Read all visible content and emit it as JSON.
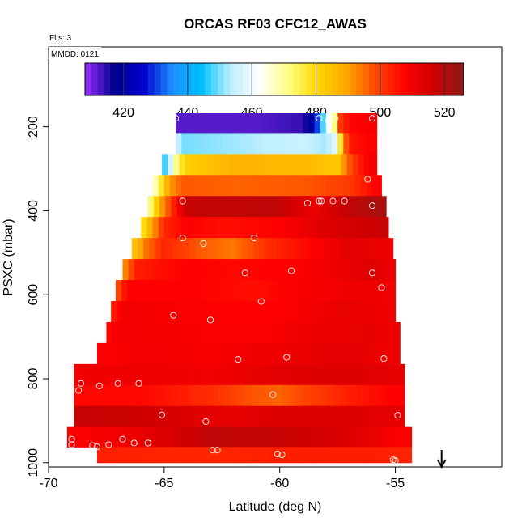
{
  "chart_data": {
    "type": "heatmap",
    "title": "ORCAS RF03 CFC12_AWAS",
    "flights_label": "Flts: 3",
    "date_label": "MMDD: 0121",
    "xlabel": "Latitude (deg N)",
    "ylabel": "PSXC (mbar)",
    "xlim": [
      -70,
      -50.4
    ],
    "ylim": [
      1010,
      10
    ],
    "x_ticks": [
      "-70",
      "-65",
      "-60",
      "-55"
    ],
    "y_ticks": [
      "200",
      "400",
      "600",
      "800",
      "1000"
    ],
    "colorbar": {
      "range": [
        408,
        526
      ],
      "ticks": [
        "420",
        "440",
        "460",
        "480",
        "500",
        "520"
      ],
      "colors": [
        "#9b30ff",
        "#00008b",
        "#0000cd",
        "#1e90ff",
        "#00bfff",
        "#bfefff",
        "#ffffff",
        "#ffff80",
        "#ffd700",
        "#ffa500",
        "#ff4500",
        "#ff0000",
        "#cd0000",
        "#8b1a1a"
      ]
    },
    "arrow_latitude": -53,
    "layers": [
      {
        "p": 190,
        "min_lat": -64.5,
        "max_lat": -55.8,
        "knots": [
          [
            -64.5,
            412
          ],
          [
            -61,
            412
          ],
          [
            -59,
            414
          ],
          [
            -58.5,
            422
          ],
          [
            -58.2,
            442
          ],
          [
            -58.0,
            458
          ],
          [
            -57.6,
            472
          ],
          [
            -57.4,
            500
          ],
          [
            -57.0,
            507
          ],
          [
            -56.0,
            509
          ]
        ]
      },
      {
        "p": 240,
        "min_lat": -64.5,
        "max_lat": -55.8,
        "knots": [
          [
            -64.5,
            456
          ],
          [
            -64.2,
            450
          ],
          [
            -63,
            451
          ],
          [
            -59,
            455
          ],
          [
            -58,
            452
          ],
          [
            -57.5,
            460
          ],
          [
            -57.3,
            488
          ],
          [
            -57.0,
            505
          ],
          [
            -56.0,
            508
          ]
        ]
      },
      {
        "p": 290,
        "min_lat": -65.1,
        "max_lat": -55.8,
        "knots": [
          [
            -65.1,
            444
          ],
          [
            -64.8,
            452
          ],
          [
            -64.5,
            470
          ],
          [
            -64.1,
            482
          ],
          [
            -62,
            487
          ],
          [
            -59,
            486
          ],
          [
            -57.5,
            483
          ],
          [
            -57.1,
            495
          ],
          [
            -56.5,
            505
          ],
          [
            -56.0,
            510
          ]
        ]
      },
      {
        "p": 340,
        "min_lat": -65.5,
        "max_lat": -55.6,
        "knots": [
          [
            -65.5,
            464
          ],
          [
            -65.2,
            474
          ],
          [
            -64.8,
            490
          ],
          [
            -64.2,
            497
          ],
          [
            -62,
            496
          ],
          [
            -59,
            497
          ],
          [
            -57,
            500
          ],
          [
            -55.8,
            508
          ]
        ]
      },
      {
        "p": 390,
        "min_lat": -65.7,
        "max_lat": -55.4,
        "knots": [
          [
            -65.7,
            468
          ],
          [
            -65.2,
            488
          ],
          [
            -64.6,
            503
          ],
          [
            -64,
            518
          ],
          [
            -60,
            519
          ],
          [
            -58.5,
            511
          ],
          [
            -57,
            519
          ],
          [
            -55.5,
            522
          ]
        ]
      },
      {
        "p": 440,
        "min_lat": -66.0,
        "max_lat": -55.3,
        "knots": [
          [
            -66.0,
            476
          ],
          [
            -65.5,
            490
          ],
          [
            -65,
            503
          ],
          [
            -64,
            508
          ],
          [
            -62.5,
            506
          ],
          [
            -60,
            508
          ],
          [
            -58,
            514
          ],
          [
            -55.5,
            518
          ]
        ]
      },
      {
        "p": 490,
        "min_lat": -66.4,
        "max_lat": -55.1,
        "knots": [
          [
            -66.4,
            482
          ],
          [
            -65.8,
            494
          ],
          [
            -65,
            503
          ],
          [
            -63.5,
            497
          ],
          [
            -62,
            494
          ],
          [
            -60.5,
            502
          ],
          [
            -58.5,
            508
          ],
          [
            -57,
            513
          ],
          [
            -55.3,
            511
          ]
        ]
      },
      {
        "p": 540,
        "min_lat": -66.8,
        "max_lat": -55.0,
        "knots": [
          [
            -66.8,
            490
          ],
          [
            -66.2,
            504
          ],
          [
            -64,
            508
          ],
          [
            -62,
            507
          ],
          [
            -60,
            508
          ],
          [
            -58,
            510
          ],
          [
            -56,
            514
          ],
          [
            -55.0,
            510
          ]
        ]
      },
      {
        "p": 590,
        "min_lat": -67.1,
        "max_lat": -55.0,
        "knots": [
          [
            -67.1,
            496
          ],
          [
            -66.6,
            508
          ],
          [
            -64,
            508
          ],
          [
            -61,
            506
          ],
          [
            -59,
            509
          ],
          [
            -56,
            511
          ],
          [
            -55.0,
            509
          ]
        ]
      },
      {
        "p": 640,
        "min_lat": -67.3,
        "max_lat": -55.0,
        "knots": [
          [
            -67.3,
            503
          ],
          [
            -66.8,
            510
          ],
          [
            -63,
            508
          ],
          [
            -60,
            508
          ],
          [
            -57,
            512
          ],
          [
            -55.0,
            510
          ]
        ]
      },
      {
        "p": 690,
        "min_lat": -67.5,
        "max_lat": -54.8,
        "knots": [
          [
            -67.5,
            506
          ],
          [
            -67,
            510
          ],
          [
            -64,
            509
          ],
          [
            -61,
            508
          ],
          [
            -58.5,
            511
          ],
          [
            -56,
            512
          ],
          [
            -54.8,
            510
          ]
        ]
      },
      {
        "p": 740,
        "min_lat": -67.9,
        "max_lat": -54.8,
        "knots": [
          [
            -67.9,
            508
          ],
          [
            -66,
            510
          ],
          [
            -63,
            509
          ],
          [
            -60,
            511
          ],
          [
            -57,
            513
          ],
          [
            -54.8,
            510
          ]
        ]
      },
      {
        "p": 790,
        "min_lat": -68.9,
        "max_lat": -54.6,
        "knots": [
          [
            -68.9,
            510
          ],
          [
            -66,
            511
          ],
          [
            -63,
            510
          ],
          [
            -60,
            513
          ],
          [
            -57,
            514
          ],
          [
            -54.6,
            512
          ]
        ]
      },
      {
        "p": 840,
        "min_lat": -68.9,
        "max_lat": -54.6,
        "knots": [
          [
            -68.9,
            507
          ],
          [
            -66,
            507
          ],
          [
            -63,
            502
          ],
          [
            -61.5,
            498
          ],
          [
            -60,
            496
          ],
          [
            -58.5,
            500
          ],
          [
            -57,
            504
          ],
          [
            -55,
            508
          ]
        ]
      },
      {
        "p": 890,
        "min_lat": -68.9,
        "max_lat": -54.6,
        "knots": [
          [
            -68.9,
            518
          ],
          [
            -66,
            517
          ],
          [
            -64,
            514
          ],
          [
            -62,
            512
          ],
          [
            -60,
            514
          ],
          [
            -57,
            514
          ],
          [
            -54.6,
            512
          ]
        ]
      },
      {
        "p": 940,
        "min_lat": -69.2,
        "max_lat": -54.3,
        "knots": [
          [
            -69.2,
            508
          ],
          [
            -67,
            510
          ],
          [
            -65.5,
            513
          ],
          [
            -63,
            519
          ],
          [
            -60,
            518
          ],
          [
            -57,
            514
          ],
          [
            -55,
            509
          ],
          [
            -54.3,
            508
          ]
        ]
      },
      {
        "p": 985,
        "min_lat": -67.9,
        "max_lat": -54.3,
        "knots": [
          [
            -67.9,
            504
          ],
          [
            -65,
            503
          ],
          [
            -62,
            503
          ],
          [
            -59,
            504
          ],
          [
            -56,
            504
          ],
          [
            -54.3,
            503
          ]
        ]
      }
    ],
    "samples": [
      [
        -64.5,
        180
      ],
      [
        -58.3,
        180
      ],
      [
        -57.9,
        186
      ],
      [
        -57.6,
        180
      ],
      [
        -56.0,
        180
      ],
      [
        -56.2,
        325
      ],
      [
        -56.0,
        388
      ],
      [
        -57.2,
        377
      ],
      [
        -57.7,
        377
      ],
      [
        -58.2,
        377
      ],
      [
        -58.3,
        377
      ],
      [
        -58.8,
        382
      ],
      [
        -64.2,
        377
      ],
      [
        -64.2,
        465
      ],
      [
        -63.3,
        478
      ],
      [
        -61.1,
        465
      ],
      [
        -61.5,
        548
      ],
      [
        -59.5,
        543
      ],
      [
        -56.0,
        548
      ],
      [
        -55.6,
        583
      ],
      [
        -60.8,
        616
      ],
      [
        -64.6,
        649
      ],
      [
        -63.0,
        660
      ],
      [
        -68.9,
        735
      ],
      [
        -61.8,
        754
      ],
      [
        -59.7,
        749
      ],
      [
        -55.5,
        752
      ],
      [
        -68.6,
        811
      ],
      [
        -67.0,
        811
      ],
      [
        -66.1,
        811
      ],
      [
        -68.7,
        828
      ],
      [
        -67.8,
        817
      ],
      [
        -60.3,
        838
      ],
      [
        -65.1,
        886
      ],
      [
        -63.2,
        902
      ],
      [
        -54.9,
        887
      ],
      [
        -69.0,
        944
      ],
      [
        -69.0,
        957
      ],
      [
        -68.1,
        959
      ],
      [
        -67.9,
        962
      ],
      [
        -67.4,
        957
      ],
      [
        -66.8,
        944
      ],
      [
        -66.3,
        953
      ],
      [
        -65.7,
        953
      ],
      [
        -62.9,
        970
      ],
      [
        -62.7,
        970
      ],
      [
        -60.1,
        979
      ],
      [
        -59.9,
        981
      ],
      [
        -55.1,
        993
      ],
      [
        -55.0,
        995
      ]
    ]
  }
}
